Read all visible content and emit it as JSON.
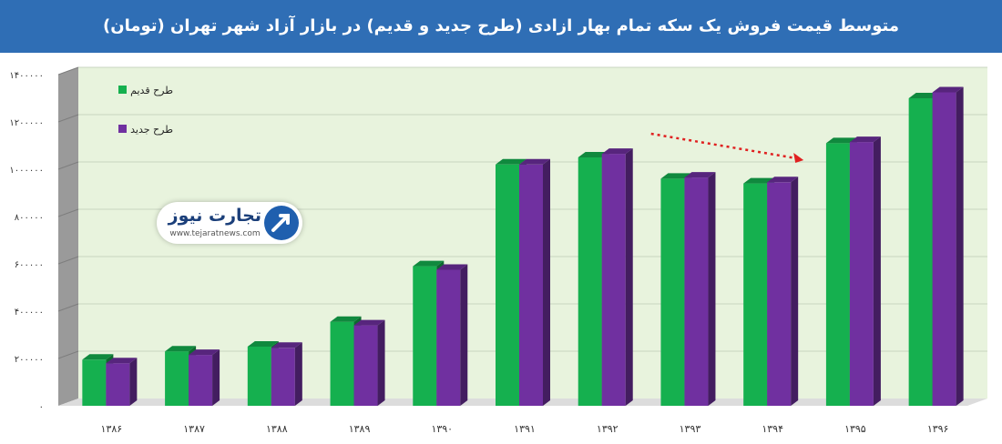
{
  "header": {
    "title": "متوسط قیمت فروش یک سکه تمام بهار ازادی (طرح جدید و قدیم) در بازار آزاد شهر تهران (تومان)"
  },
  "logo": {
    "name": "تجارت نیوز",
    "url": "www.tejaratnews.com"
  },
  "colors": {
    "header_bg": "#2f6eb5",
    "plot_bg": "#e8f3dd",
    "old_design": "#15b04f",
    "new_design": "#7030a0",
    "trend_arrow": "#e02020"
  },
  "chart_data": {
    "type": "bar",
    "title": "متوسط قیمت فروش یک سکه تمام بهار ازادی (طرح جدید و قدیم) در بازار آزاد شهر تهران (تومان)",
    "categories": [
      "۱۳۸۶",
      "۱۳۸۷",
      "۱۳۸۸",
      "۱۳۸۹",
      "۱۳۹۰",
      "۱۳۹۱",
      "۱۳۹۲",
      "۱۳۹۳",
      "۱۳۹۴",
      "۱۳۹۵",
      "۱۳۹۶"
    ],
    "series": [
      {
        "name": "طرح قدیم",
        "color": "#15b04f",
        "values": [
          195000,
          230000,
          250000,
          355000,
          590000,
          1020000,
          1050000,
          960000,
          940000,
          1110000,
          1300000
        ]
      },
      {
        "name": "طرح جدید",
        "color": "#7030a0",
        "values": [
          180000,
          215000,
          245000,
          340000,
          575000,
          1020000,
          1065000,
          965000,
          945000,
          1115000,
          1325000
        ]
      }
    ],
    "yticks": [
      "۰",
      "۲۰۰۰۰۰",
      "۴۰۰۰۰۰",
      "۶۰۰۰۰۰",
      "۸۰۰۰۰۰",
      "۱۰۰۰۰۰۰",
      "۱۲۰۰۰۰۰",
      "۱۴۰۰۰۰۰"
    ],
    "ylim": [
      0,
      1400000
    ],
    "grid": true,
    "legend_position": "top-left",
    "xlabel": "",
    "ylabel": "",
    "style": "3d-columns",
    "annotation": {
      "type": "dashed-arrow",
      "from_category": "۱۳۹۲",
      "to_category": "۱۳۹۴"
    }
  }
}
